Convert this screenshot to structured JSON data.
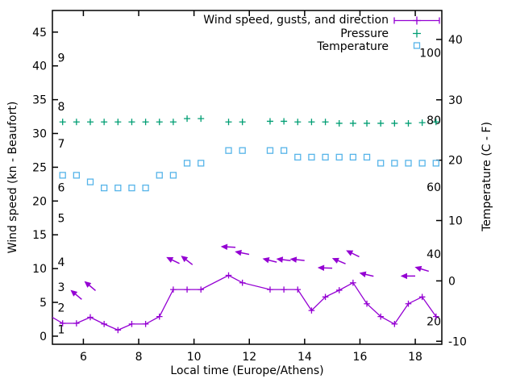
{
  "chart_data": {
    "type": "line",
    "title": "",
    "legend": {
      "position": "top-right-inside",
      "entries": [
        {
          "label": "Wind speed, gusts, and direction",
          "style": "errorbar-line-with-plus",
          "color": "#9400d3"
        },
        {
          "label": "Pressure",
          "style": "plus-marker",
          "color": "#009e73"
        },
        {
          "label": "Temperature",
          "style": "open-square-marker",
          "color": "#56b4e9"
        }
      ]
    },
    "x_axis": {
      "label": "Local time (Europe/Athens)",
      "range": [
        4.88,
        18.96
      ],
      "ticks": [
        6,
        8,
        10,
        12,
        14,
        16,
        18
      ],
      "grid": false
    },
    "y_axis_left": {
      "label": "Wind speed (kn - Beaufort)",
      "range": [
        -1.2,
        48.2
      ],
      "ticks": [
        0,
        5,
        10,
        15,
        20,
        25,
        30,
        35,
        40,
        45
      ],
      "beaufort_labels": [
        {
          "label": "1",
          "kn": 1.0
        },
        {
          "label": "2",
          "kn": 4.2
        },
        {
          "label": "3",
          "kn": 7.3
        },
        {
          "label": "4",
          "kn": 11.0
        },
        {
          "label": "5",
          "kn": 17.5
        },
        {
          "label": "6",
          "kn": 22.0
        },
        {
          "label": "7",
          "kn": 28.5
        },
        {
          "label": "8",
          "kn": 34.0
        },
        {
          "label": "9",
          "kn": 41.2
        }
      ]
    },
    "y_axis_right": {
      "label": "Temperature (C - F)",
      "range_c": [
        -10.5,
        44.8
      ],
      "ticks_c": [
        -10,
        0,
        10,
        20,
        30,
        40
      ],
      "inner_fahrenheit_labels": [
        20,
        40,
        60,
        80,
        100
      ]
    },
    "series": [
      {
        "name": "Wind speed, gusts, and direction",
        "color": "#9400d3",
        "marker": "plus",
        "line": true,
        "note": "first point lies left of plot edge; line enters clipped",
        "x": [
          4.75,
          5.25,
          5.75,
          6.25,
          6.75,
          7.25,
          7.75,
          8.25,
          8.75,
          9.25,
          9.75,
          10.25,
          11.25,
          11.75,
          12.75,
          13.25,
          13.75,
          14.25,
          14.75,
          15.25,
          15.75,
          16.25,
          16.75,
          17.25,
          17.75,
          18.25,
          18.75
        ],
        "y_kn": [
          3.1,
          1.9,
          1.9,
          2.8,
          1.8,
          0.9,
          1.8,
          1.8,
          2.9,
          6.9,
          6.9,
          6.9,
          9.0,
          7.9,
          6.9,
          6.9,
          6.9,
          3.8,
          5.8,
          6.8,
          7.9,
          4.8,
          2.9,
          1.8,
          4.8,
          5.8,
          2.9
        ]
      },
      {
        "name": "Pressure",
        "color": "#009e73",
        "marker": "plus",
        "line": false,
        "note": "no pressure scale shown; values are plotted positions in left-axis (kn) units",
        "x": [
          5.25,
          5.75,
          6.25,
          6.75,
          7.25,
          7.75,
          8.25,
          8.75,
          9.25,
          9.75,
          10.25,
          11.25,
          11.75,
          12.75,
          13.25,
          13.75,
          14.25,
          14.75,
          15.25,
          15.75,
          16.25,
          16.75,
          17.25,
          17.75,
          18.25,
          18.75
        ],
        "y_kn": [
          31.7,
          31.7,
          31.7,
          31.7,
          31.7,
          31.7,
          31.7,
          31.7,
          31.7,
          32.2,
          32.2,
          31.7,
          31.7,
          31.8,
          31.8,
          31.7,
          31.7,
          31.7,
          31.5,
          31.5,
          31.5,
          31.5,
          31.5,
          31.5,
          31.6,
          31.7
        ]
      },
      {
        "name": "Temperature",
        "color": "#56b4e9",
        "marker": "open-square",
        "line": false,
        "x": [
          5.25,
          5.75,
          6.25,
          6.75,
          7.25,
          7.75,
          8.25,
          8.75,
          9.25,
          9.75,
          10.25,
          11.25,
          11.75,
          12.75,
          13.25,
          13.75,
          14.25,
          14.75,
          15.25,
          15.75,
          16.25,
          16.75,
          17.25,
          17.75,
          18.25,
          18.75
        ],
        "y_c": [
          17.5,
          17.5,
          16.4,
          15.4,
          15.4,
          15.4,
          15.4,
          17.5,
          17.5,
          19.5,
          19.5,
          21.6,
          21.6,
          21.6,
          21.6,
          20.5,
          20.5,
          20.5,
          20.5,
          20.5,
          20.5,
          19.5,
          19.5,
          19.5,
          19.5,
          19.5
        ]
      }
    ],
    "wind_direction_arrows": {
      "color": "#9400d3",
      "note": "arrows drawn ~4 kn above the wind-speed point; angle_deg measured CCW from pointing-right",
      "points": [
        {
          "x": 5.75,
          "kn": 6.1,
          "angle_deg": 140
        },
        {
          "x": 6.25,
          "kn": 7.4,
          "angle_deg": 140
        },
        {
          "x": 9.25,
          "kn": 11.2,
          "angle_deg": 154
        },
        {
          "x": 9.75,
          "kn": 11.2,
          "angle_deg": 142
        },
        {
          "x": 11.25,
          "kn": 13.2,
          "angle_deg": 177
        },
        {
          "x": 11.75,
          "kn": 12.3,
          "angle_deg": 169
        },
        {
          "x": 12.75,
          "kn": 11.2,
          "angle_deg": 166
        },
        {
          "x": 13.25,
          "kn": 11.3,
          "angle_deg": 173
        },
        {
          "x": 13.75,
          "kn": 11.3,
          "angle_deg": 174
        },
        {
          "x": 14.75,
          "kn": 10.1,
          "angle_deg": 178
        },
        {
          "x": 15.25,
          "kn": 11.1,
          "angle_deg": 157
        },
        {
          "x": 15.75,
          "kn": 12.2,
          "angle_deg": 154
        },
        {
          "x": 16.25,
          "kn": 9.1,
          "angle_deg": 167
        },
        {
          "x": 17.75,
          "kn": 8.9,
          "angle_deg": 180
        },
        {
          "x": 18.25,
          "kn": 9.9,
          "angle_deg": 163
        }
      ]
    }
  }
}
